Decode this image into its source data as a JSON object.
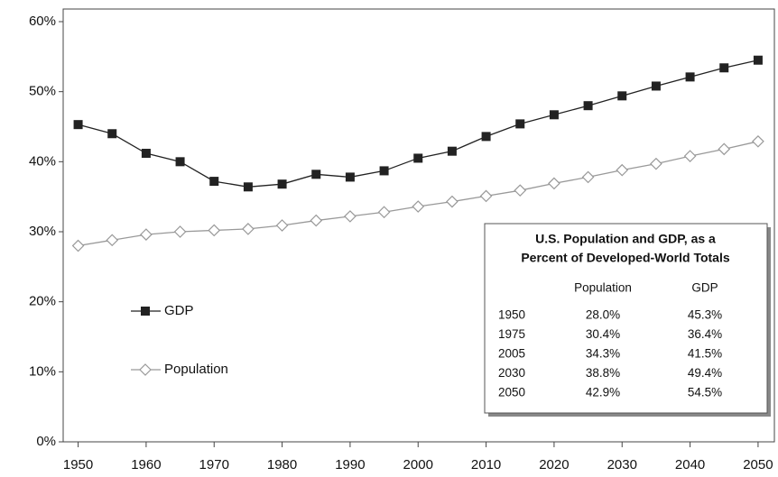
{
  "chart_data": {
    "type": "line",
    "x": [
      1950,
      1955,
      1960,
      1965,
      1970,
      1975,
      1980,
      1985,
      1990,
      1995,
      2000,
      2005,
      2010,
      2015,
      2020,
      2025,
      2030,
      2035,
      2040,
      2045,
      2050
    ],
    "series": [
      {
        "name": "GDP",
        "color": "#222222",
        "marker": "square",
        "values": [
          45.3,
          44.0,
          41.2,
          40.0,
          37.2,
          36.4,
          36.8,
          38.2,
          37.8,
          38.7,
          40.5,
          41.5,
          43.6,
          45.4,
          46.7,
          48.0,
          49.4,
          50.8,
          52.1,
          53.4,
          54.5
        ]
      },
      {
        "name": "Population",
        "color": "#999999",
        "marker": "diamond",
        "values": [
          28.0,
          28.8,
          29.6,
          30.0,
          30.2,
          30.4,
          30.9,
          31.6,
          32.2,
          32.8,
          33.6,
          34.3,
          35.1,
          35.9,
          36.9,
          37.8,
          38.8,
          39.7,
          40.8,
          41.8,
          42.9
        ]
      }
    ],
    "xlim": [
      1947.8,
      2052.4
    ],
    "ylim": [
      0,
      60
    ],
    "xticks": [
      1950,
      1960,
      1970,
      1980,
      1990,
      2000,
      2010,
      2020,
      2030,
      2040,
      2050
    ],
    "yticks": [
      {
        "value": 0,
        "label": "0%"
      },
      {
        "value": 10,
        "label": "10%"
      },
      {
        "value": 20,
        "label": "20%"
      },
      {
        "value": 30,
        "label": "30%"
      },
      {
        "value": 40,
        "label": "40%"
      },
      {
        "value": 50,
        "label": "50%"
      },
      {
        "value": 60,
        "label": "60%"
      }
    ],
    "table": {
      "title": [
        "U.S. Population and GDP, as a",
        "Percent of Developed-World Totals"
      ],
      "columns": [
        "Population",
        "GDP"
      ],
      "rows": [
        [
          "1950",
          "28.0%",
          "45.3%"
        ],
        [
          "1975",
          "30.4%",
          "36.4%"
        ],
        [
          "2005",
          "34.3%",
          "41.5%"
        ],
        [
          "2030",
          "38.8%",
          "49.4%"
        ],
        [
          "2050",
          "42.9%",
          "54.5%"
        ]
      ]
    }
  }
}
